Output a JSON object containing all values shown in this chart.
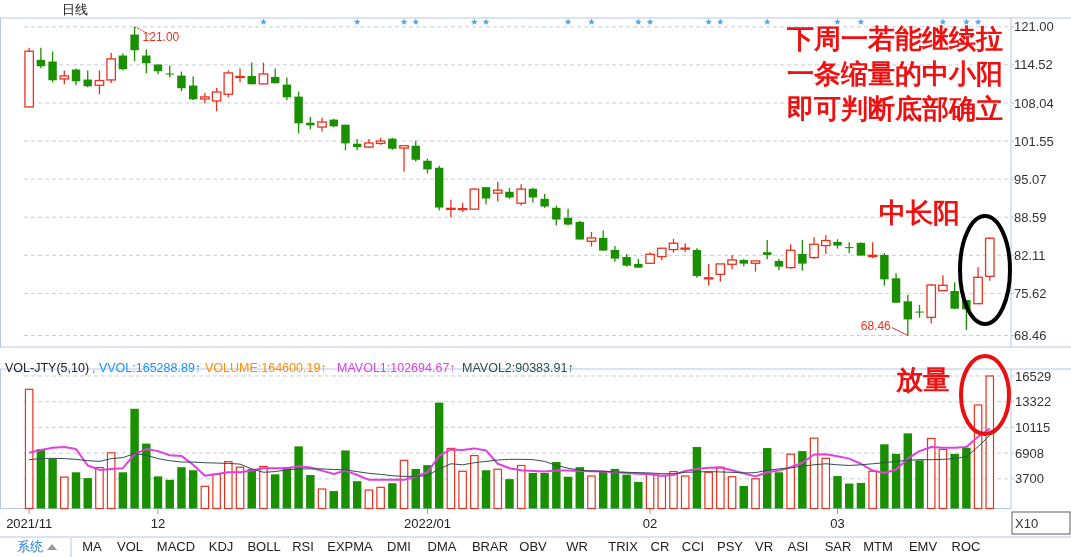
{
  "chart_data": [
    {
      "type": "candlestick",
      "title": "日线",
      "categories": [
        "2021/11",
        null,
        null,
        null,
        null,
        null,
        null,
        null,
        null,
        null,
        null,
        "12",
        null,
        null,
        null,
        null,
        null,
        null,
        null,
        null,
        null,
        null,
        null,
        null,
        null,
        null,
        null,
        null,
        null,
        null,
        null,
        null,
        null,
        null,
        "2022/01",
        null,
        null,
        null,
        null,
        null,
        null,
        null,
        null,
        null,
        null,
        null,
        null,
        null,
        null,
        null,
        null,
        null,
        null,
        "02",
        null,
        null,
        null,
        null,
        null,
        null,
        null,
        null,
        null,
        null,
        null,
        null,
        null,
        null,
        null,
        "03",
        null,
        null,
        null,
        null,
        null,
        null,
        null,
        null,
        null,
        null,
        null,
        null,
        null
      ],
      "ohlc": [
        [
          107.36,
          117.42,
          107.36,
          116.85
        ],
        [
          115.37,
          117.42,
          113.95,
          114.29
        ],
        [
          115.09,
          116.79,
          111.56,
          111.9
        ],
        [
          112.13,
          113.55,
          111.22,
          112.64
        ],
        [
          113.72,
          113.89,
          111.05,
          111.73
        ],
        [
          112.02,
          113.55,
          110.71,
          110.88
        ],
        [
          111.05,
          113.55,
          109.52,
          111.85
        ],
        [
          111.96,
          116.57,
          111.45,
          115.54
        ],
        [
          116.11,
          116.45,
          113.61,
          113.78
        ],
        [
          119.69,
          121.0,
          115.14,
          117.02
        ],
        [
          116.11,
          117.13,
          113.1,
          114.8
        ],
        [
          114.58,
          114.58,
          112.93,
          113.44
        ],
        [
          113.05,
          114.41,
          112.42,
          113.0
        ],
        [
          112.7,
          113.38,
          110.03,
          110.54
        ],
        [
          111.0,
          112.53,
          108.49,
          108.66
        ],
        [
          108.72,
          109.74,
          107.98,
          109.06
        ],
        [
          108.38,
          110.6,
          106.62,
          109.91
        ],
        [
          109.52,
          113.55,
          109.0,
          113.15
        ],
        [
          112.5,
          113.89,
          111.56,
          112.55
        ],
        [
          112.64,
          114.92,
          111.22,
          111.22
        ],
        [
          111.28,
          114.92,
          111.28,
          112.98
        ],
        [
          112.47,
          113.89,
          111.39,
          111.39
        ],
        [
          111.16,
          112.36,
          108.49,
          109.0
        ],
        [
          109.12,
          109.97,
          102.86,
          104.57
        ],
        [
          104.68,
          105.71,
          103.55,
          104.23
        ],
        [
          103.94,
          105.54,
          103.2,
          104.8
        ],
        [
          105.2,
          105.37,
          103.89,
          104.06
        ],
        [
          104.34,
          104.34,
          99.97,
          101.16
        ],
        [
          101.1,
          101.9,
          99.97,
          100.53
        ],
        [
          100.53,
          101.9,
          100.31,
          101.22
        ],
        [
          101.16,
          102.13,
          100.93,
          101.56
        ],
        [
          101.96,
          102.13,
          100.08,
          100.25
        ],
        [
          100.36,
          100.76,
          96.33,
          100.76
        ],
        [
          100.76,
          101.61,
          98.03,
          98.37
        ],
        [
          98.2,
          98.54,
          96.04,
          96.73
        ],
        [
          97.01,
          97.35,
          89.73,
          90.24
        ],
        [
          90.05,
          91.55,
          88.54,
          90.1
        ],
        [
          90.0,
          91.04,
          89.5,
          90.05
        ],
        [
          89.96,
          93.54,
          89.96,
          93.37
        ],
        [
          93.71,
          93.71,
          90.76,
          91.78
        ],
        [
          92.69,
          94.62,
          91.27,
          93.2
        ],
        [
          92.92,
          93.6,
          91.72,
          91.95
        ],
        [
          90.98,
          94.22,
          90.59,
          93.37
        ],
        [
          93.43,
          93.6,
          91.1,
          91.95
        ],
        [
          91.72,
          92.57,
          90.19,
          90.41
        ],
        [
          90.19,
          90.53,
          87.17,
          88.2
        ],
        [
          88.48,
          90.02,
          87.17,
          87.34
        ],
        [
          87.8,
          87.97,
          84.79,
          84.79
        ],
        [
          84.5,
          86.09,
          83.59,
          85.07
        ],
        [
          85.07,
          86.32,
          82.91,
          82.91
        ],
        [
          83.02,
          83.71,
          81.03,
          81.55
        ],
        [
          81.83,
          82.34,
          80.18,
          80.35
        ],
        [
          80.64,
          81.49,
          80.01,
          80.01
        ],
        [
          80.75,
          82.63,
          80.75,
          82.28
        ],
        [
          81.89,
          83.31,
          81.32,
          83.31
        ],
        [
          83.08,
          84.9,
          82.57,
          84.16
        ],
        [
          83.28,
          84.16,
          82.68,
          83.33
        ],
        [
          83.02,
          83.31,
          78.3,
          78.59
        ],
        [
          78.23,
          80.64,
          76.94,
          78.28
        ],
        [
          78.87,
          80.64,
          77.62,
          80.64
        ],
        [
          80.58,
          82.11,
          79.73,
          81.32
        ],
        [
          81.32,
          81.43,
          80.24,
          80.69
        ],
        [
          80.75,
          81.15,
          79.33,
          81.15
        ],
        [
          82.63,
          84.73,
          81.43,
          82.17
        ],
        [
          81.15,
          81.49,
          79.56,
          80.18
        ],
        [
          80.01,
          83.99,
          79.84,
          82.97
        ],
        [
          82.34,
          84.73,
          79.5,
          80.69
        ],
        [
          81.72,
          85.18,
          81.49,
          83.99
        ],
        [
          83.76,
          85.52,
          82.34,
          84.62
        ],
        [
          84.39,
          84.84,
          83.25,
          83.76
        ],
        [
          83.5,
          84.33,
          82.46,
          83.45
        ],
        [
          84.22,
          84.33,
          82.06,
          82.06
        ],
        [
          81.89,
          84.33,
          81.6,
          82.11
        ],
        [
          82.17,
          82.46,
          76.94,
          78.02
        ],
        [
          78.19,
          79.04,
          74.04,
          74.04
        ],
        [
          74.27,
          75.35,
          68.46,
          71.2
        ],
        [
          72.53,
          73.64,
          71.48,
          72.47
        ],
        [
          71.54,
          77.22,
          70.52,
          77.05
        ],
        [
          76.09,
          78.7,
          76.09,
          77.0
        ],
        [
          76.03,
          77.51,
          73.02,
          73.02
        ],
        [
          74.5,
          74.5,
          69.38,
          72.9
        ],
        [
          73.87,
          80.07,
          73.87,
          78.36
        ],
        [
          78.53,
          85.18,
          77.79,
          85.01
        ]
      ],
      "colors": [
        "#e8321e",
        "#1a8f00",
        "#1a8f00",
        "#e8321e",
        "#1a8f00",
        "#1a8f00",
        "#e8321e",
        "#e8321e",
        "#1a8f00",
        "#1a8f00",
        "#1a8f00",
        "#1a8f00",
        "#1a8f00",
        "#1a8f00",
        "#1a8f00",
        "#e8321e",
        "#e8321e",
        "#e8321e",
        "#e8321e",
        "#1a8f00",
        "#e8321e",
        "#1a8f00",
        "#1a8f00",
        "#1a8f00",
        "#1a8f00",
        "#e8321e",
        "#1a8f00",
        "#1a8f00",
        "#1a8f00",
        "#e8321e",
        "#e8321e",
        "#1a8f00",
        "#e8321e",
        "#1a8f00",
        "#1a8f00",
        "#1a8f00",
        "#e8321e",
        "#e8321e",
        "#e8321e",
        "#1a8f00",
        "#e8321e",
        "#1a8f00",
        "#e8321e",
        "#1a8f00",
        "#1a8f00",
        "#1a8f00",
        "#1a8f00",
        "#1a8f00",
        "#e8321e",
        "#1a8f00",
        "#1a8f00",
        "#1a8f00",
        "#1a8f00",
        "#e8321e",
        "#e8321e",
        "#e8321e",
        "#e8321e",
        "#1a8f00",
        "#e8321e",
        "#e8321e",
        "#e8321e",
        "#1a8f00",
        "#e8321e",
        "#1a8f00",
        "#1a8f00",
        "#e8321e",
        "#1a8f00",
        "#e8321e",
        "#e8321e",
        "#1a8f00",
        "#1a8f00",
        "#1a8f00",
        "#e8321e",
        "#1a8f00",
        "#1a8f00",
        "#1a8f00",
        "#1a8f00",
        "#e8321e",
        "#e8321e",
        "#1a8f00",
        "#1a8f00",
        "#e8321e",
        "#e8321e"
      ],
      "ylim": [
        66.5,
        122.5
      ],
      "yticks": [
        {
          "value": 121,
          "label": "121.00"
        },
        114.52,
        108.04,
        101.55,
        95.07,
        88.59,
        82.11,
        75.62,
        68.46
      ],
      "grid": "y",
      "tick_labels": "y",
      "annotations": [
        "下周一若能继续拉",
        "一条缩量的中小阳",
        "即可判断底部确立",
        "中长阳",
        "121.00",
        "68.46"
      ]
    },
    {
      "type": "bar",
      "title": "VOL-JTY(5,10)",
      "ylabel": "X10",
      "categories": [
        "2021/11",
        null,
        null,
        null,
        null,
        null,
        null,
        null,
        null,
        null,
        null,
        "12",
        null,
        null,
        null,
        null,
        null,
        null,
        null,
        null,
        null,
        null,
        null,
        null,
        null,
        null,
        null,
        null,
        null,
        null,
        null,
        null,
        null,
        null,
        "2022/01",
        null,
        null,
        null,
        null,
        null,
        null,
        null,
        null,
        null,
        null,
        null,
        null,
        null,
        null,
        null,
        null,
        null,
        null,
        "02",
        null,
        null,
        null,
        null,
        null,
        null,
        null,
        null,
        null,
        null,
        null,
        null,
        null,
        null,
        null,
        "03",
        null,
        null,
        null,
        null,
        null,
        null,
        null,
        null,
        null,
        null,
        null,
        null,
        null
      ],
      "ylim": [
        0,
        17400
      ],
      "yticks": [
        3700,
        6908,
        10115,
        13322,
        16529
      ],
      "grid": "y",
      "legend": "top left",
      "annotations": [
        ", VVOL:165288.89↑",
        "VOLUME:164600.19↑",
        "放量"
      ],
      "series": [
        {
          "type": "bar",
          "colors": [
            "#e8321e",
            "#1a8f00",
            "#1a8f00",
            "#e8321e",
            "#1a8f00",
            "#1a8f00",
            "#e8321e",
            "#e8321e",
            "#1a8f00",
            "#1a8f00",
            "#1a8f00",
            "#1a8f00",
            "#1a8f00",
            "#1a8f00",
            "#1a8f00",
            "#e8321e",
            "#e8321e",
            "#e8321e",
            "#e8321e",
            "#1a8f00",
            "#e8321e",
            "#1a8f00",
            "#1a8f00",
            "#1a8f00",
            "#1a8f00",
            "#e8321e",
            "#1a8f00",
            "#1a8f00",
            "#1a8f00",
            "#e8321e",
            "#e8321e",
            "#1a8f00",
            "#e8321e",
            "#1a8f00",
            "#1a8f00",
            "#1a8f00",
            "#e8321e",
            "#e8321e",
            "#e8321e",
            "#1a8f00",
            "#e8321e",
            "#1a8f00",
            "#e8321e",
            "#1a8f00",
            "#1a8f00",
            "#1a8f00",
            "#1a8f00",
            "#1a8f00",
            "#e8321e",
            "#1a8f00",
            "#1a8f00",
            "#1a8f00",
            "#1a8f00",
            "#e8321e",
            "#e8321e",
            "#e8321e",
            "#e8321e",
            "#1a8f00",
            "#e8321e",
            "#e8321e",
            "#e8321e",
            "#1a8f00",
            "#e8321e",
            "#1a8f00",
            "#1a8f00",
            "#e8321e",
            "#1a8f00",
            "#e8321e",
            "#e8321e",
            "#1a8f00",
            "#1a8f00",
            "#1a8f00",
            "#e8321e",
            "#1a8f00",
            "#1a8f00",
            "#1a8f00",
            "#1a8f00",
            "#e8321e",
            "#e8321e",
            "#1a8f00",
            "#1a8f00",
            "#e8321e",
            "#e8321e"
          ],
          "values": [
            14867,
            7412,
            6220,
            3919,
            4516,
            3791,
            5112,
            6944,
            4516,
            12439,
            8094,
            4004,
            3578,
            5155,
            4771,
            2769,
            4260,
            5836,
            5155,
            4942,
            5240,
            4260,
            5155,
            7753,
            4175,
            2428,
            2173,
            7242,
            3408,
            2300,
            2641,
            3152,
            6007,
            4942,
            5410,
            13206,
            7498,
            4643,
            6603,
            4771,
            4899,
            3664,
            5368,
            4430,
            4430,
            5794,
            3962,
            5155,
            4047,
            4601,
            4942,
            4217,
            3323,
            4260,
            4090,
            4601,
            4047,
            7668,
            4516,
            5155,
            3962,
            2812,
            3706,
            7540,
            4516,
            6773,
            7157,
            8776,
            6262,
            4047,
            3110,
            3195,
            4643,
            8009,
            6816,
            9372,
            6007,
            8733,
            7370,
            6816,
            7583,
            12908,
            16529
          ]
        },
        {
          "type": "line",
          "name": "MAVOL1:102694.67↑",
          "color": "#e040e0",
          "values": [
            6944,
            7285,
            7583,
            7668,
            7412,
            5368,
            4814,
            4942,
            5027,
            6773,
            7412,
            7157,
            6646,
            6560,
            5453,
            4090,
            4303,
            4516,
            4516,
            4729,
            5027,
            5027,
            5027,
            5282,
            5112,
            4729,
            4303,
            4729,
            4175,
            3578,
            3578,
            3578,
            3578,
            3962,
            4516,
            6560,
            7370,
            7285,
            7498,
            7242,
            5581,
            5027,
            4771,
            4686,
            4601,
            4729,
            4729,
            4686,
            4643,
            4601,
            4516,
            4430,
            4345,
            4260,
            4090,
            4175,
            4686,
            4942,
            5069,
            5112,
            4771,
            4388,
            4004,
            4516,
            4729,
            5155,
            5708,
            6731,
            6773,
            6518,
            6220,
            5581,
            4729,
            4430,
            4856,
            6220,
            7157,
            7668,
            7583,
            7583,
            7668,
            8946,
            9968
          ]
        },
        {
          "type": "line",
          "name": "MAVOL2:90383.91↑",
          "color": "#2f4f4f",
          "values": [
            6092,
            6220,
            6262,
            6220,
            6134,
            5964,
            5879,
            6220,
            6347,
            6859,
            6646,
            6220,
            5964,
            5794,
            5794,
            5708,
            5666,
            5623,
            5538,
            4942,
            4516,
            4601,
            4814,
            4942,
            4942,
            4942,
            4856,
            4814,
            4601,
            4388,
            4260,
            4090,
            4004,
            4004,
            4090,
            4942,
            5581,
            5453,
            5708,
            5879,
            6049,
            6134,
            6134,
            6092,
            5879,
            5368,
            5027,
            4771,
            4686,
            4643,
            4558,
            4516,
            4473,
            4430,
            4345,
            4345,
            4516,
            4558,
            4601,
            4558,
            4516,
            4430,
            4473,
            4771,
            4942,
            5069,
            5282,
            5453,
            5581,
            5453,
            5368,
            5453,
            5581,
            5708,
            5879,
            6007,
            6092,
            6092,
            6134,
            6220,
            6475,
            7711,
            9116
          ]
        }
      ]
    },
    {
      "type": "other",
      "annotations": [
        "系统",
        "MA",
        "VOL",
        "MACD",
        "KDJ",
        "BOLL",
        "RSI",
        "EXPMA",
        "DMI",
        "DMA",
        "BRAR",
        "OBV",
        "WR",
        "TRIX",
        "CR",
        "CCI",
        "PSY",
        "VR",
        "ASI",
        "SAR",
        "MTM",
        "EMV",
        "ROC"
      ]
    }
  ]
}
